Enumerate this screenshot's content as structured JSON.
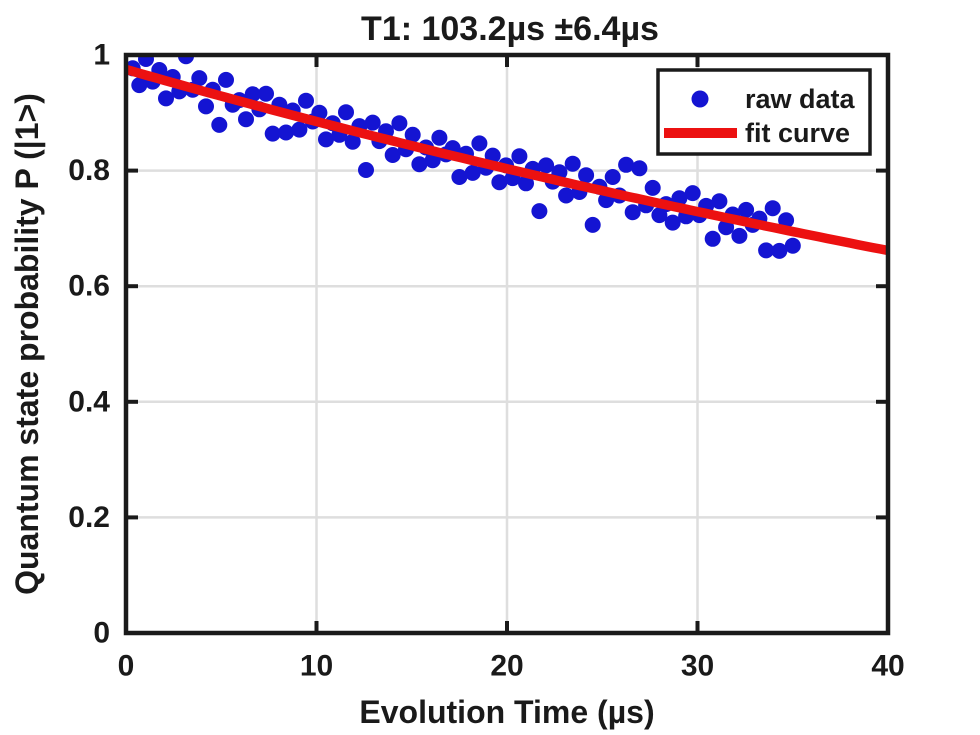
{
  "figure": {
    "background": "#ffffff"
  },
  "chart_data": {
    "type": "scatter",
    "title": "T1: 103.2µs ±6.4µs",
    "xlabel": "Evolution Time (µs)",
    "ylabel": "Quantum state probability P (|1>)",
    "xlim": [
      0,
      40
    ],
    "ylim": [
      0,
      1
    ],
    "xticks": [
      0,
      10,
      20,
      30,
      40
    ],
    "xtick_labels": [
      "0",
      "10",
      "20",
      "30",
      "40"
    ],
    "yticks": [
      0,
      0.2,
      0.4,
      0.6,
      0.8,
      1
    ],
    "ytick_labels": [
      "0",
      "0.2",
      "0.4",
      "0.6",
      "0.8",
      "1"
    ],
    "grid": true,
    "legend": {
      "position": "top-right",
      "entries": [
        {
          "label": "raw data",
          "marker": "dot",
          "color": "#1414d2"
        },
        {
          "label": "fit curve",
          "marker": "line",
          "color": "#ec1111"
        }
      ]
    },
    "fit": {
      "type": "exponential-decay",
      "formula": "P(t) = P0 * exp(-t / T1)",
      "P0": 0.975,
      "T1_us": 103.2,
      "T1_err_us": 6.4,
      "t_range": [
        0,
        40
      ]
    },
    "series": [
      {
        "name": "raw data",
        "type": "scatter",
        "color": "#1414d2",
        "marker_radius": 8,
        "points": [
          [
            0.35,
            0.977
          ],
          [
            0.7,
            0.948
          ],
          [
            1.05,
            0.993
          ],
          [
            1.4,
            0.954
          ],
          [
            1.75,
            0.974
          ],
          [
            2.1,
            0.925
          ],
          [
            2.45,
            0.962
          ],
          [
            2.8,
            0.937
          ],
          [
            3.15,
            0.998
          ],
          [
            3.5,
            0.94
          ],
          [
            3.85,
            0.96
          ],
          [
            4.2,
            0.911
          ],
          [
            4.55,
            0.94
          ],
          [
            4.9,
            0.879
          ],
          [
            5.25,
            0.957
          ],
          [
            5.6,
            0.914
          ],
          [
            5.95,
            0.922
          ],
          [
            6.3,
            0.889
          ],
          [
            6.65,
            0.932
          ],
          [
            7.0,
            0.906
          ],
          [
            7.35,
            0.933
          ],
          [
            7.7,
            0.864
          ],
          [
            8.05,
            0.914
          ],
          [
            8.4,
            0.866
          ],
          [
            8.75,
            0.904
          ],
          [
            9.1,
            0.871
          ],
          [
            9.45,
            0.921
          ],
          [
            9.8,
            0.885
          ],
          [
            10.15,
            0.9
          ],
          [
            10.5,
            0.854
          ],
          [
            10.85,
            0.882
          ],
          [
            11.2,
            0.862
          ],
          [
            11.55,
            0.901
          ],
          [
            11.9,
            0.85
          ],
          [
            12.25,
            0.877
          ],
          [
            12.6,
            0.801
          ],
          [
            12.95,
            0.883
          ],
          [
            13.3,
            0.851
          ],
          [
            13.65,
            0.868
          ],
          [
            14.0,
            0.827
          ],
          [
            14.35,
            0.882
          ],
          [
            14.7,
            0.837
          ],
          [
            15.05,
            0.862
          ],
          [
            15.4,
            0.811
          ],
          [
            15.75,
            0.84
          ],
          [
            16.1,
            0.818
          ],
          [
            16.45,
            0.857
          ],
          [
            16.8,
            0.828
          ],
          [
            17.15,
            0.839
          ],
          [
            17.5,
            0.789
          ],
          [
            17.85,
            0.829
          ],
          [
            18.2,
            0.796
          ],
          [
            18.55,
            0.847
          ],
          [
            18.9,
            0.805
          ],
          [
            19.25,
            0.826
          ],
          [
            19.6,
            0.78
          ],
          [
            19.95,
            0.809
          ],
          [
            20.3,
            0.787
          ],
          [
            20.65,
            0.825
          ],
          [
            21.0,
            0.778
          ],
          [
            21.35,
            0.803
          ],
          [
            21.7,
            0.73
          ],
          [
            22.05,
            0.809
          ],
          [
            22.4,
            0.781
          ],
          [
            22.75,
            0.797
          ],
          [
            23.1,
            0.757
          ],
          [
            23.45,
            0.812
          ],
          [
            23.8,
            0.763
          ],
          [
            24.15,
            0.792
          ],
          [
            24.5,
            0.706
          ],
          [
            24.85,
            0.772
          ],
          [
            25.2,
            0.749
          ],
          [
            25.55,
            0.789
          ],
          [
            25.9,
            0.757
          ],
          [
            26.25,
            0.81
          ],
          [
            26.6,
            0.728
          ],
          [
            26.95,
            0.804
          ],
          [
            27.3,
            0.74
          ],
          [
            27.65,
            0.77
          ],
          [
            28.0,
            0.723
          ],
          [
            28.35,
            0.742
          ],
          [
            28.7,
            0.71
          ],
          [
            29.05,
            0.752
          ],
          [
            29.4,
            0.721
          ],
          [
            29.75,
            0.761
          ],
          [
            30.1,
            0.723
          ],
          [
            30.45,
            0.739
          ],
          [
            30.8,
            0.682
          ],
          [
            31.15,
            0.747
          ],
          [
            31.5,
            0.702
          ],
          [
            31.85,
            0.724
          ],
          [
            32.2,
            0.687
          ],
          [
            32.55,
            0.732
          ],
          [
            32.9,
            0.706
          ],
          [
            33.25,
            0.717
          ],
          [
            33.6,
            0.662
          ],
          [
            33.95,
            0.735
          ],
          [
            34.3,
            0.661
          ],
          [
            34.65,
            0.714
          ],
          [
            35.0,
            0.67
          ]
        ]
      },
      {
        "name": "fit curve",
        "type": "line",
        "color": "#ec1111",
        "line_width": 9.5
      }
    ]
  },
  "colors": {
    "axis": "#1a1a1a",
    "grid": "#dedede",
    "text": "#1a1a1a",
    "plot_background": "#ffffff",
    "legend_background": "#ffffff",
    "legend_border": "#1a1a1a"
  }
}
